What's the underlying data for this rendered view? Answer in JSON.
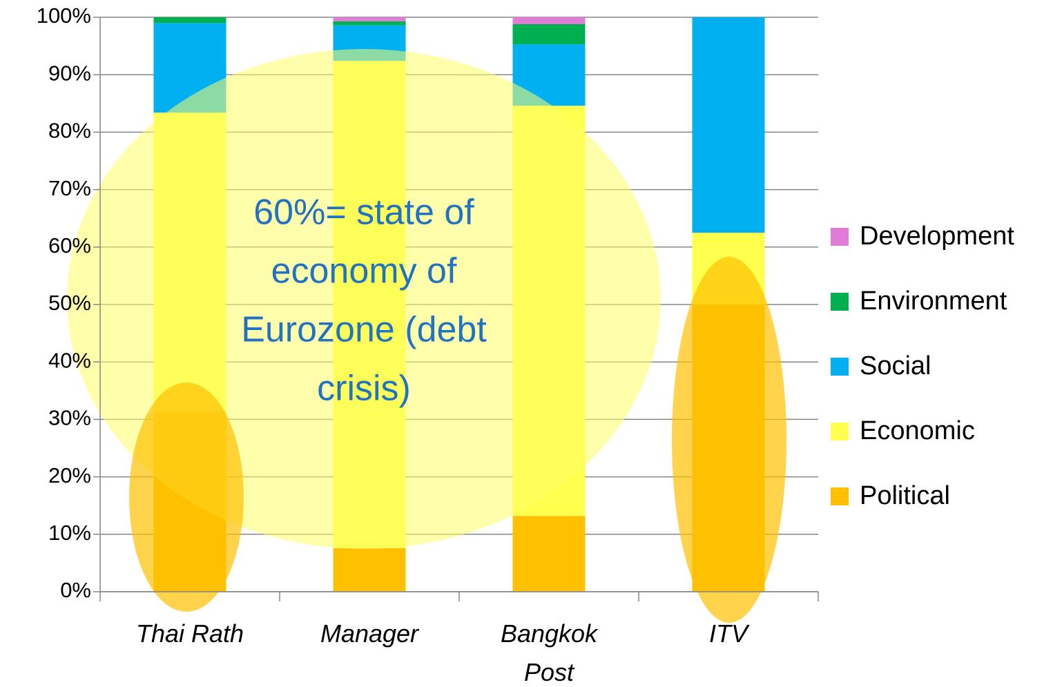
{
  "chart_data": {
    "type": "stacked_bar",
    "categories": [
      "Thai Rath",
      "Manager",
      "Bangkok Post",
      "ITV"
    ],
    "series": [
      {
        "name": "Political",
        "color": "#ffc000",
        "values": [
          31.3,
          7.6,
          13.2,
          50
        ]
      },
      {
        "name": "Economic",
        "color": "#ffff4d",
        "values": [
          52.1,
          84.8,
          71.4,
          12.5
        ]
      },
      {
        "name": "Social",
        "color": "#00b0f0",
        "values": [
          15.6,
          6.2,
          10.7,
          37.5
        ]
      },
      {
        "name": "Environment",
        "color": "#00b050",
        "values": [
          1.0,
          0.7,
          3.5,
          0
        ]
      },
      {
        "name": "Development",
        "color": "#e07bd8",
        "values": [
          0,
          0.7,
          1.2,
          0
        ]
      }
    ],
    "ylim": [
      0,
      100
    ],
    "yticks": [
      {
        "value": 0,
        "label": "0%"
      },
      {
        "value": 10,
        "label": "10%"
      },
      {
        "value": 20,
        "label": "20%"
      },
      {
        "value": 30,
        "label": "30%"
      },
      {
        "value": 40,
        "label": "40%"
      },
      {
        "value": 50,
        "label": "50%"
      },
      {
        "value": 60,
        "label": "60%"
      },
      {
        "value": 70,
        "label": "70%"
      },
      {
        "value": 80,
        "label": "80%"
      },
      {
        "value": 90,
        "label": "90%"
      },
      {
        "value": 100,
        "label": "100%"
      }
    ],
    "grid": true,
    "legend": "right",
    "annotation": [
      "60%= state of",
      "economy of",
      "Eurozone (debt",
      "crisis)"
    ]
  }
}
